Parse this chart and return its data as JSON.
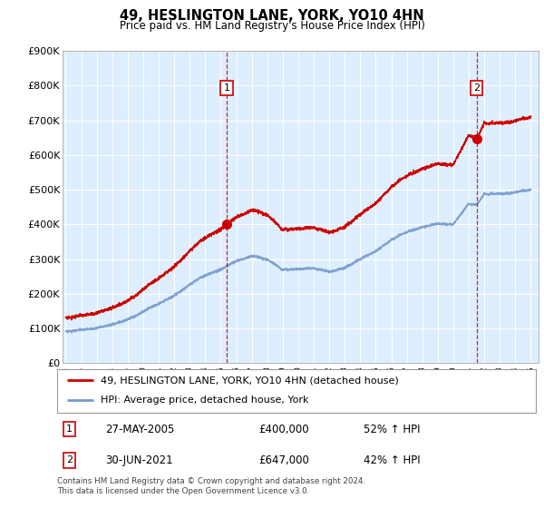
{
  "title": "49, HESLINGTON LANE, YORK, YO10 4HN",
  "subtitle": "Price paid vs. HM Land Registry's House Price Index (HPI)",
  "ylabel_ticks": [
    "£0",
    "£100K",
    "£200K",
    "£300K",
    "£400K",
    "£500K",
    "£600K",
    "£700K",
    "£800K",
    "£900K"
  ],
  "ytick_values": [
    0,
    100000,
    200000,
    300000,
    400000,
    500000,
    600000,
    700000,
    800000,
    900000
  ],
  "ylim": [
    0,
    900000
  ],
  "xlim_start": 1994.8,
  "xlim_end": 2025.5,
  "red_color": "#cc0000",
  "blue_color": "#7799cc",
  "plot_bg_color": "#ddeeff",
  "background_color": "#ffffff",
  "grid_color": "#ffffff",
  "purchase1_x": 2005.38,
  "purchase1_y": 400000,
  "purchase2_x": 2021.5,
  "purchase2_y": 647000,
  "legend_entry1": "49, HESLINGTON LANE, YORK, YO10 4HN (detached house)",
  "legend_entry2": "HPI: Average price, detached house, York",
  "table_row1_num": "1",
  "table_row1_date": "27-MAY-2005",
  "table_row1_price": "£400,000",
  "table_row1_hpi": "52% ↑ HPI",
  "table_row2_num": "2",
  "table_row2_date": "30-JUN-2021",
  "table_row2_price": "£647,000",
  "table_row2_hpi": "42% ↑ HPI",
  "footnote": "Contains HM Land Registry data © Crown copyright and database right 2024.\nThis data is licensed under the Open Government Licence v3.0.",
  "xtick_years": [
    1995,
    1996,
    1997,
    1998,
    1999,
    2000,
    2001,
    2002,
    2003,
    2004,
    2005,
    2006,
    2007,
    2008,
    2009,
    2010,
    2011,
    2012,
    2013,
    2014,
    2015,
    2016,
    2017,
    2018,
    2019,
    2020,
    2021,
    2022,
    2023,
    2024,
    2025
  ]
}
